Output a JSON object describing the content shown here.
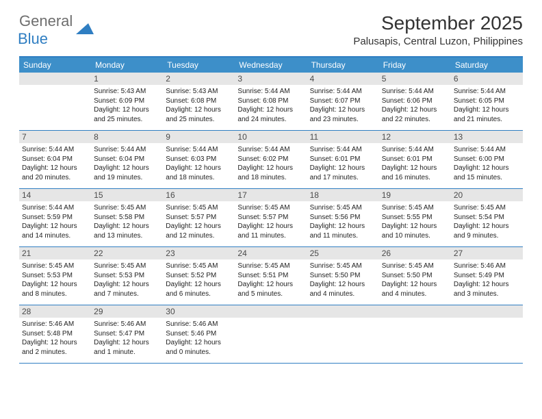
{
  "logo": {
    "text1": "General",
    "text2": "Blue"
  },
  "title": "September 2025",
  "location": "Palusapis, Central Luzon, Philippines",
  "colors": {
    "header_bg": "#3d8fc9",
    "border": "#2f7ec2",
    "daynum_bg": "#e6e6e6",
    "logo_gray": "#6e6e6e",
    "logo_blue": "#2f7ec2"
  },
  "day_names": [
    "Sunday",
    "Monday",
    "Tuesday",
    "Wednesday",
    "Thursday",
    "Friday",
    "Saturday"
  ],
  "weeks": [
    [
      {
        "empty": true
      },
      {
        "n": "1",
        "sr": "5:43 AM",
        "ss": "6:09 PM",
        "dl": "12 hours and 25 minutes."
      },
      {
        "n": "2",
        "sr": "5:43 AM",
        "ss": "6:08 PM",
        "dl": "12 hours and 25 minutes."
      },
      {
        "n": "3",
        "sr": "5:44 AM",
        "ss": "6:08 PM",
        "dl": "12 hours and 24 minutes."
      },
      {
        "n": "4",
        "sr": "5:44 AM",
        "ss": "6:07 PM",
        "dl": "12 hours and 23 minutes."
      },
      {
        "n": "5",
        "sr": "5:44 AM",
        "ss": "6:06 PM",
        "dl": "12 hours and 22 minutes."
      },
      {
        "n": "6",
        "sr": "5:44 AM",
        "ss": "6:05 PM",
        "dl": "12 hours and 21 minutes."
      }
    ],
    [
      {
        "n": "7",
        "sr": "5:44 AM",
        "ss": "6:04 PM",
        "dl": "12 hours and 20 minutes."
      },
      {
        "n": "8",
        "sr": "5:44 AM",
        "ss": "6:04 PM",
        "dl": "12 hours and 19 minutes."
      },
      {
        "n": "9",
        "sr": "5:44 AM",
        "ss": "6:03 PM",
        "dl": "12 hours and 18 minutes."
      },
      {
        "n": "10",
        "sr": "5:44 AM",
        "ss": "6:02 PM",
        "dl": "12 hours and 18 minutes."
      },
      {
        "n": "11",
        "sr": "5:44 AM",
        "ss": "6:01 PM",
        "dl": "12 hours and 17 minutes."
      },
      {
        "n": "12",
        "sr": "5:44 AM",
        "ss": "6:01 PM",
        "dl": "12 hours and 16 minutes."
      },
      {
        "n": "13",
        "sr": "5:44 AM",
        "ss": "6:00 PM",
        "dl": "12 hours and 15 minutes."
      }
    ],
    [
      {
        "n": "14",
        "sr": "5:44 AM",
        "ss": "5:59 PM",
        "dl": "12 hours and 14 minutes."
      },
      {
        "n": "15",
        "sr": "5:45 AM",
        "ss": "5:58 PM",
        "dl": "12 hours and 13 minutes."
      },
      {
        "n": "16",
        "sr": "5:45 AM",
        "ss": "5:57 PM",
        "dl": "12 hours and 12 minutes."
      },
      {
        "n": "17",
        "sr": "5:45 AM",
        "ss": "5:57 PM",
        "dl": "12 hours and 11 minutes."
      },
      {
        "n": "18",
        "sr": "5:45 AM",
        "ss": "5:56 PM",
        "dl": "12 hours and 11 minutes."
      },
      {
        "n": "19",
        "sr": "5:45 AM",
        "ss": "5:55 PM",
        "dl": "12 hours and 10 minutes."
      },
      {
        "n": "20",
        "sr": "5:45 AM",
        "ss": "5:54 PM",
        "dl": "12 hours and 9 minutes."
      }
    ],
    [
      {
        "n": "21",
        "sr": "5:45 AM",
        "ss": "5:53 PM",
        "dl": "12 hours and 8 minutes."
      },
      {
        "n": "22",
        "sr": "5:45 AM",
        "ss": "5:53 PM",
        "dl": "12 hours and 7 minutes."
      },
      {
        "n": "23",
        "sr": "5:45 AM",
        "ss": "5:52 PM",
        "dl": "12 hours and 6 minutes."
      },
      {
        "n": "24",
        "sr": "5:45 AM",
        "ss": "5:51 PM",
        "dl": "12 hours and 5 minutes."
      },
      {
        "n": "25",
        "sr": "5:45 AM",
        "ss": "5:50 PM",
        "dl": "12 hours and 4 minutes."
      },
      {
        "n": "26",
        "sr": "5:45 AM",
        "ss": "5:50 PM",
        "dl": "12 hours and 4 minutes."
      },
      {
        "n": "27",
        "sr": "5:46 AM",
        "ss": "5:49 PM",
        "dl": "12 hours and 3 minutes."
      }
    ],
    [
      {
        "n": "28",
        "sr": "5:46 AM",
        "ss": "5:48 PM",
        "dl": "12 hours and 2 minutes."
      },
      {
        "n": "29",
        "sr": "5:46 AM",
        "ss": "5:47 PM",
        "dl": "12 hours and 1 minute."
      },
      {
        "n": "30",
        "sr": "5:46 AM",
        "ss": "5:46 PM",
        "dl": "12 hours and 0 minutes."
      },
      {
        "empty": true
      },
      {
        "empty": true
      },
      {
        "empty": true
      },
      {
        "empty": true
      }
    ]
  ],
  "labels": {
    "sunrise": "Sunrise:",
    "sunset": "Sunset:",
    "daylight": "Daylight:"
  }
}
